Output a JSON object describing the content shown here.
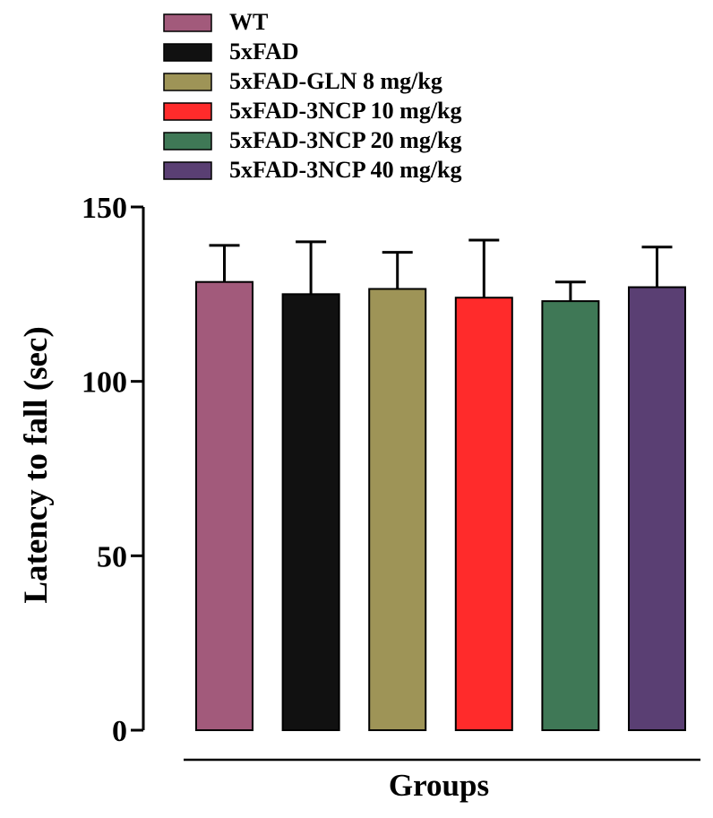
{
  "chart_data": {
    "type": "bar",
    "title": "",
    "xlabel": "Groups",
    "ylabel": "Latency to fall (sec)",
    "ylim": [
      0,
      150
    ],
    "yticks": [
      0,
      50,
      100,
      150
    ],
    "grid": false,
    "legend_position": "top",
    "categories": [
      "WT",
      "5xFAD",
      "5xFAD-GLN 8 mg/kg",
      "5xFAD-3NCP 10 mg/kg",
      "5xFAD-3NCP 20 mg/kg",
      "5xFAD-3NCP 40 mg/kg"
    ],
    "values": [
      128.5,
      125.0,
      126.5,
      124.0,
      123.0,
      127.0
    ],
    "errors": [
      10.5,
      15.0,
      10.5,
      16.5,
      5.5,
      11.5
    ],
    "colors": [
      "#A25A7B",
      "#111111",
      "#9E9457",
      "#FF2B2B",
      "#3F7856",
      "#5A3F73"
    ]
  }
}
